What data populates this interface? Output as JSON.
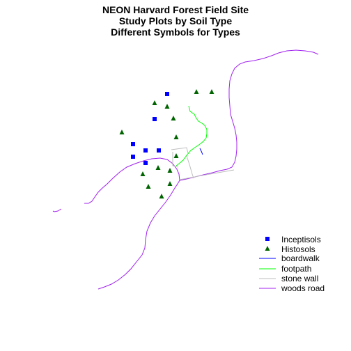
{
  "title": {
    "line1": "NEON Harvard Forest Field Site",
    "line2": "Study Plots by Soil Type",
    "line3": "Different Symbols for Types"
  },
  "legend": {
    "items": [
      {
        "key": "inceptisols",
        "label": "Inceptisols",
        "symbol": "square",
        "color": "#0000FF"
      },
      {
        "key": "histosols",
        "label": "Histosols",
        "symbol": "triangle",
        "color": "#006400"
      },
      {
        "key": "boardwalk",
        "label": "boardwalk",
        "symbol": "line",
        "color": "#0000FF"
      },
      {
        "key": "footpath",
        "label": "footpath",
        "symbol": "line",
        "color": "#00FF00"
      },
      {
        "key": "stone_wall",
        "label": "stone wall",
        "symbol": "line",
        "color": "#BEBEBE"
      },
      {
        "key": "woods_road",
        "label": "woods road",
        "symbol": "line",
        "color": "#A020F0"
      }
    ]
  }
}
